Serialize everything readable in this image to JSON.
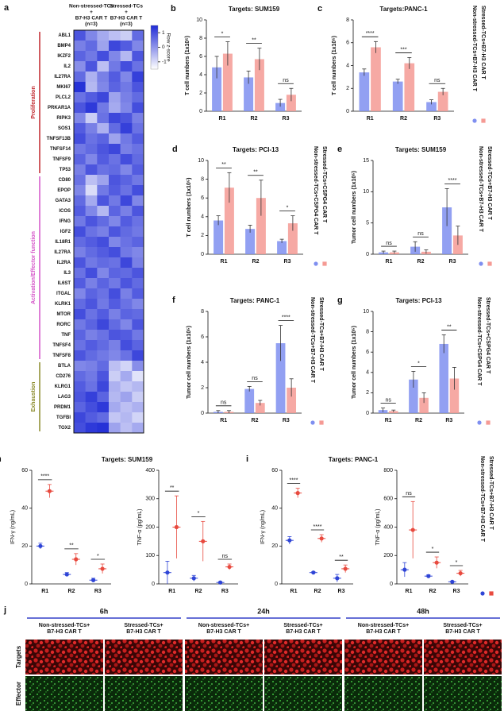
{
  "chart_data": [
    {
      "type": "heatmap",
      "panel": "a",
      "column_groups": [
        [
          "Non-stressed-TCs",
          "+",
          "B7-H3 CAR T",
          "(n=3)"
        ],
        [
          "Stressed-TCs",
          "+",
          "B7-H3 CAR T",
          "(n=3)"
        ]
      ],
      "colorbar_label": "Row z-score",
      "colorbar_ticks": [
        1,
        0,
        -1
      ],
      "clim": [
        -1.5,
        1.5
      ],
      "row_groups": [
        {
          "name": "Proliferation",
          "color": "#c0272d",
          "rows": [
            "ABL1",
            "BMP4",
            "IKZF2",
            "IL2",
            "IL27RA",
            "MKI67",
            "PLCL2",
            "PRKAR1A",
            "RIPK3",
            "SOS1",
            "TNFSF13B",
            "TNFSF14",
            "TNFSF9",
            "TP53"
          ],
          "values": [
            [
              0.9,
              0.2,
              -0.3,
              -0.6,
              -0.8,
              0.6
            ],
            [
              0.3,
              0.6,
              -0.2,
              1.1,
              0.8,
              0.2
            ],
            [
              0.7,
              0.4,
              1.0,
              0.2,
              -0.5,
              0.9
            ],
            [
              0.1,
              0.9,
              -0.6,
              0.4,
              1.0,
              0.5
            ],
            [
              0.6,
              -0.4,
              0.3,
              0.8,
              0.2,
              1.2
            ],
            [
              1.4,
              -0.5,
              0.2,
              0.7,
              0.4,
              0.9
            ],
            [
              0.5,
              0.8,
              1.1,
              -0.2,
              0.3,
              0.6
            ],
            [
              0.9,
              1.3,
              0.4,
              -0.3,
              0.2,
              1.0
            ],
            [
              0.2,
              -0.8,
              0.5,
              1.1,
              0.9,
              0.3
            ],
            [
              0.8,
              0.3,
              -0.4,
              0.6,
              1.2,
              0.5
            ],
            [
              1.0,
              0.5,
              0.7,
              -0.2,
              0.4,
              0.8
            ],
            [
              0.4,
              0.6,
              0.9,
              1.1,
              0.3,
              0.5
            ],
            [
              0.7,
              0.2,
              0.8,
              0.5,
              1.0,
              0.6
            ],
            [
              0.3,
              0.9,
              0.5,
              0.6,
              0.2,
              0.8
            ]
          ]
        },
        {
          "name": "Activation/Effector function",
          "color": "#d455c8",
          "rows": [
            "CD80",
            "EPOP",
            "GATA3",
            "ICOS",
            "IFNG",
            "IGF2",
            "IL18R1",
            "IL27RA",
            "IL2RA",
            "IL3",
            "IL6ST",
            "ITGAL",
            "KLRK1",
            "MTOR",
            "RORC",
            "TNF",
            "TNFSF4",
            "TNFSF8"
          ],
          "values": [
            [
              0.5,
              -0.6,
              -0.2,
              0.9,
              0.7,
              0.4
            ],
            [
              0.2,
              -1.0,
              0.4,
              0.8,
              0.5,
              1.0
            ],
            [
              0.6,
              -0.3,
              0.9,
              0.4,
              1.1,
              0.2
            ],
            [
              0.8,
              0.2,
              -0.5,
              0.7,
              0.3,
              0.9
            ],
            [
              0.4,
              0.9,
              0.6,
              0.2,
              0.8,
              0.5
            ],
            [
              1.0,
              0.5,
              0.3,
              0.9,
              0.6,
              0.4
            ],
            [
              0.6,
              0.8,
              1.0,
              0.2,
              0.5,
              0.7
            ],
            [
              0.3,
              0.6,
              0.8,
              1.0,
              0.4,
              0.2
            ],
            [
              0.9,
              0.4,
              0.6,
              0.5,
              1.1,
              0.3
            ],
            [
              0.5,
              1.0,
              0.2,
              0.7,
              0.6,
              0.9
            ],
            [
              0.8,
              0.3,
              0.7,
              0.4,
              0.9,
              0.6
            ],
            [
              0.2,
              0.7,
              0.5,
              1.0,
              0.3,
              0.8
            ],
            [
              0.6,
              0.9,
              0.4,
              0.8,
              0.5,
              0.2
            ],
            [
              1.0,
              0.5,
              0.8,
              0.3,
              0.7,
              0.6
            ],
            [
              0.4,
              0.7,
              1.1,
              0.6,
              0.2,
              0.9
            ],
            [
              0.7,
              0.3,
              0.5,
              0.9,
              0.8,
              0.4
            ],
            [
              0.5,
              0.8,
              0.6,
              0.3,
              1.0,
              0.7
            ],
            [
              0.9,
              0.6,
              0.4,
              0.2,
              0.5,
              1.1
            ]
          ]
        },
        {
          "name": "Exhaustion",
          "color": "#8a8a2a",
          "rows": [
            "BTLA",
            "CD276",
            "KLRG1",
            "LAG3",
            "PRDM1",
            "TGFBI",
            "TOX2"
          ],
          "values": [
            [
              0.2,
              0.3,
              0.6,
              -0.6,
              -0.9,
              0.1
            ],
            [
              0.6,
              0.4,
              0.9,
              -0.8,
              -0.3,
              -1.1
            ],
            [
              0.8,
              0.5,
              1.1,
              -0.4,
              -0.7,
              -0.5
            ],
            [
              0.9,
              1.2,
              0.7,
              -0.5,
              -0.2,
              -0.8
            ],
            [
              0.7,
              1.0,
              1.3,
              -0.3,
              -0.6,
              -0.4
            ],
            [
              1.1,
              0.8,
              0.6,
              -0.7,
              -0.5,
              -0.9
            ],
            [
              1.0,
              1.3,
              1.4,
              -0.2,
              -0.6,
              -0.3
            ]
          ]
        }
      ]
    },
    {
      "type": "bar",
      "panel": "b",
      "title": "Targets: SUM159",
      "ylabel": "T cell numbers (1x10⁵)",
      "categories": [
        "R1",
        "R2",
        "R3"
      ],
      "ylim": [
        0,
        10
      ],
      "yticks": [
        0,
        2,
        4,
        6,
        8,
        10
      ],
      "series": [
        {
          "color": "#7f8ff0",
          "values": [
            4.8,
            3.7,
            0.9
          ],
          "errors": [
            1.2,
            0.7,
            0.4
          ]
        },
        {
          "color": "#f59a94",
          "values": [
            6.3,
            5.7,
            1.8
          ],
          "errors": [
            1.3,
            1.2,
            0.7
          ]
        }
      ],
      "significance": [
        "*",
        "**",
        "ns"
      ]
    },
    {
      "type": "bar",
      "panel": "c",
      "title": "Targets:PANC-1",
      "ylabel": "T cell numbers (1x10⁵)",
      "categories": [
        "R1",
        "R2",
        "R3"
      ],
      "ylim": [
        0,
        8
      ],
      "yticks": [
        0,
        2,
        4,
        6,
        8
      ],
      "legend": "right",
      "series": [
        {
          "name": "Non-stressed-TCs+B7-H3 CAR T",
          "color": "#7f8ff0",
          "values": [
            3.4,
            2.6,
            0.8
          ],
          "errors": [
            0.3,
            0.2,
            0.2
          ]
        },
        {
          "name": "Stressed-TCs+B7-H3 CAR T",
          "color": "#f59a94",
          "values": [
            5.6,
            4.2,
            1.7
          ],
          "errors": [
            0.5,
            0.5,
            0.3
          ]
        }
      ],
      "significance": [
        "****",
        "***",
        "ns"
      ]
    },
    {
      "type": "bar",
      "panel": "d",
      "title": "Targets: PCI-13",
      "ylabel": "T cell numbers (1x10⁵)",
      "categories": [
        "R1",
        "R2",
        "R3"
      ],
      "ylim": [
        0,
        10
      ],
      "yticks": [
        0,
        2,
        4,
        6,
        8,
        10
      ],
      "legend": "right",
      "series": [
        {
          "name": "Non-stressed-TCs+CSPG4 CAR T",
          "color": "#7f8ff0",
          "values": [
            3.6,
            2.7,
            1.4
          ],
          "errors": [
            0.5,
            0.4,
            0.2
          ]
        },
        {
          "name": "Stressed-TCs+CSPG4 CAR T",
          "color": "#f59a94",
          "values": [
            7.1,
            6.0,
            3.3
          ],
          "errors": [
            1.6,
            1.9,
            0.8
          ]
        }
      ],
      "significance": [
        "**",
        "**",
        "*"
      ]
    },
    {
      "type": "bar",
      "panel": "e",
      "title": "Targets: SUM159",
      "ylabel": "Tumor cell numbers (1x10⁵)",
      "categories": [
        "R1",
        "R2",
        "R3"
      ],
      "ylim": [
        0,
        15
      ],
      "yticks": [
        0,
        5,
        10,
        15
      ],
      "legend": "right",
      "series": [
        {
          "name": "Non-stressed-TCs+B7-H3 CAR T",
          "color": "#7f8ff0",
          "values": [
            0.3,
            1.2,
            7.5
          ],
          "errors": [
            0.2,
            0.8,
            3.0
          ]
        },
        {
          "name": "Stressed-TCs+B7-H3 CAR T",
          "color": "#f59a94",
          "values": [
            0.3,
            0.4,
            3.0
          ],
          "errors": [
            0.2,
            0.3,
            1.5
          ]
        }
      ],
      "significance": [
        "ns",
        "ns",
        "****"
      ]
    },
    {
      "type": "bar",
      "panel": "f",
      "title": "Targets: PANC-1",
      "ylabel": "Tumor cell numbers (1x10⁵)",
      "categories": [
        "R1",
        "R2",
        "R3"
      ],
      "ylim": [
        0,
        8
      ],
      "yticks": [
        0,
        2,
        4,
        6,
        8
      ],
      "legend": "right",
      "series": [
        {
          "name": "Non-stressed-TCs+B7-H3 CAR T",
          "color": "#7f8ff0",
          "values": [
            0.1,
            1.9,
            5.5
          ],
          "errors": [
            0.1,
            0.2,
            1.4
          ]
        },
        {
          "name": "Stressed-TCs+B7-H3 CAR T",
          "color": "#f59a94",
          "values": [
            0.1,
            0.8,
            2.0
          ],
          "errors": [
            0.1,
            0.2,
            0.7
          ]
        }
      ],
      "significance": [
        "ns",
        "ns",
        "****"
      ]
    },
    {
      "type": "bar",
      "panel": "g",
      "title": "Targets: PCI-13",
      "ylabel": "Tumor cell numbers (1x10⁵)",
      "categories": [
        "R1",
        "R2",
        "R3"
      ],
      "ylim": [
        0,
        10
      ],
      "yticks": [
        0,
        2,
        4,
        6,
        8,
        10
      ],
      "legend": "right",
      "series": [
        {
          "name": "Non-stressed-TCs+CSPG4 CAR T",
          "color": "#7f8ff0",
          "values": [
            0.3,
            3.3,
            6.8
          ],
          "errors": [
            0.2,
            0.8,
            0.9
          ]
        },
        {
          "name": "Stressed-TCs+CSPG4 CAR T",
          "color": "#f59a94",
          "values": [
            0.2,
            1.5,
            3.4
          ],
          "errors": [
            0.1,
            0.5,
            1.1
          ]
        }
      ],
      "significance": [
        "ns",
        "*",
        "**"
      ]
    },
    {
      "type": "dot",
      "panel": "h",
      "title": "Targets: SUM159",
      "ylabel": "IFN-γ (ng/mL)",
      "categories": [
        "R1",
        "R2",
        "R3"
      ],
      "ylim": [
        0,
        60
      ],
      "yticks": [
        0,
        20,
        40,
        60
      ],
      "series": [
        {
          "color": "#2f45d6",
          "values": [
            20,
            5,
            2
          ],
          "errors": [
            1.5,
            1,
            1
          ]
        },
        {
          "color": "#e84a3f",
          "values": [
            49,
            13,
            8
          ],
          "errors": [
            3.5,
            3,
            2.5
          ]
        }
      ],
      "significance": [
        "****",
        "**",
        "*"
      ]
    },
    {
      "type": "dot",
      "ylabel": "TNF-α (pg/mL)",
      "categories": [
        "R1",
        "R2",
        "R3"
      ],
      "ylim": [
        0,
        400
      ],
      "yticks": [
        0,
        100,
        200,
        300,
        400
      ],
      "series": [
        {
          "color": "#2f45d6",
          "values": [
            40,
            20,
            5
          ],
          "errors": [
            40,
            10,
            3
          ]
        },
        {
          "color": "#e84a3f",
          "values": [
            200,
            150,
            60
          ],
          "errors": [
            110,
            70,
            10
          ]
        }
      ],
      "significance": [
        "**",
        "*",
        "ns"
      ]
    },
    {
      "type": "dot",
      "panel": "i",
      "title": "Targets: PANC-1",
      "ylabel": "IFN-γ (ng/mL)",
      "categories": [
        "R1",
        "R2",
        "R3"
      ],
      "ylim": [
        0,
        60
      ],
      "yticks": [
        0,
        20,
        40,
        60
      ],
      "series": [
        {
          "color": "#2f45d6",
          "values": [
            23,
            6,
            3
          ],
          "errors": [
            2,
            0.5,
            2
          ]
        },
        {
          "color": "#e84a3f",
          "values": [
            48,
            24,
            8
          ],
          "errors": [
            2.5,
            2,
            2
          ]
        }
      ],
      "significance": [
        "****",
        "****",
        "**"
      ]
    },
    {
      "type": "dot",
      "ylabel": "TNF-α (pg/mL)",
      "categories": [
        "R1",
        "R2",
        "R3"
      ],
      "ylim": [
        0,
        800
      ],
      "yticks": [
        0,
        200,
        400,
        600,
        800
      ],
      "legend": "right",
      "series": [
        {
          "name": "Non-stressed-TCs+B7-H3 CAR T",
          "color": "#2f45d6",
          "values": [
            100,
            55,
            15
          ],
          "errors": [
            50,
            10,
            5
          ]
        },
        {
          "name": "Stressed-TCs+B7-H3 CAR T",
          "color": "#e84a3f",
          "values": [
            380,
            150,
            75
          ],
          "errors": [
            200,
            40,
            20
          ]
        }
      ],
      "significance": [
        "ns",
        "*",
        "*"
      ]
    }
  ],
  "panel_j": {
    "panel": "j",
    "row_labels": [
      "Targets",
      "Effector"
    ],
    "timepoints": [
      {
        "label": "6h",
        "groups": [
          [
            "Non-stressed-TCs+",
            "B7-H3 CAR T"
          ],
          [
            "Stressed-TCs+",
            "B7-H3 CAR T"
          ]
        ]
      },
      {
        "label": "24h",
        "groups": [
          [
            "Non-stressed-TCs+",
            "B7-H3 CAR T"
          ],
          [
            "Stressed-TCs+",
            "B7-H3 CAR T"
          ]
        ]
      },
      {
        "label": "48h",
        "groups": [
          [
            "Non-stressed-TCs+",
            "B7-H3 CAR T"
          ],
          [
            "Stressed-TCs+",
            "B7-H3 CAR T"
          ]
        ]
      }
    ]
  }
}
